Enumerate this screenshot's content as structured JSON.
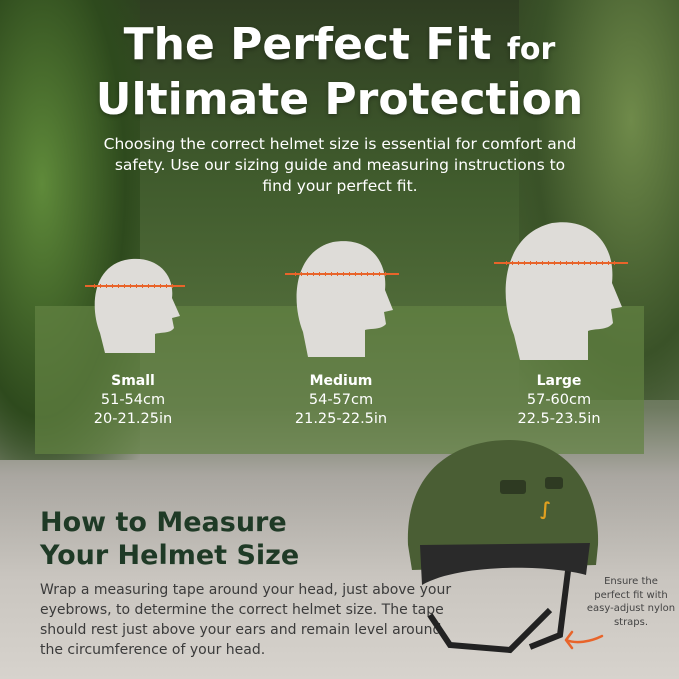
{
  "title": {
    "line1_main": "The Perfect Fit",
    "line1_small": "for",
    "line2": "Ultimate Protection"
  },
  "subtitle": "Choosing the correct helmet size is essential for comfort and safety. Use our sizing guide and measuring instructions to find your perfect fit.",
  "sizes": [
    {
      "name": "Small",
      "cm": "51-54cm",
      "in": "20-21.25in"
    },
    {
      "name": "Medium",
      "cm": "54-57cm",
      "in": "21.25-22.5in"
    },
    {
      "name": "Large",
      "cm": "57-60cm",
      "in": "22.5-23.5in"
    }
  ],
  "measure": {
    "heading_line1": "How to Measure",
    "heading_line2": "Your Helmet Size",
    "text": "Wrap a measuring tape around your head, just above your eyebrows, to determine the correct helmet size. The tape should rest just above your ears and remain level around the circumference of your head."
  },
  "strap_note": "Ensure the perfect fit with easy-adjust nylon straps.",
  "colors": {
    "heading": "#1f3a26",
    "band": "#628242",
    "tape": "#e8642a",
    "helmet": "#4a5e34",
    "logo": "#e0a020"
  }
}
